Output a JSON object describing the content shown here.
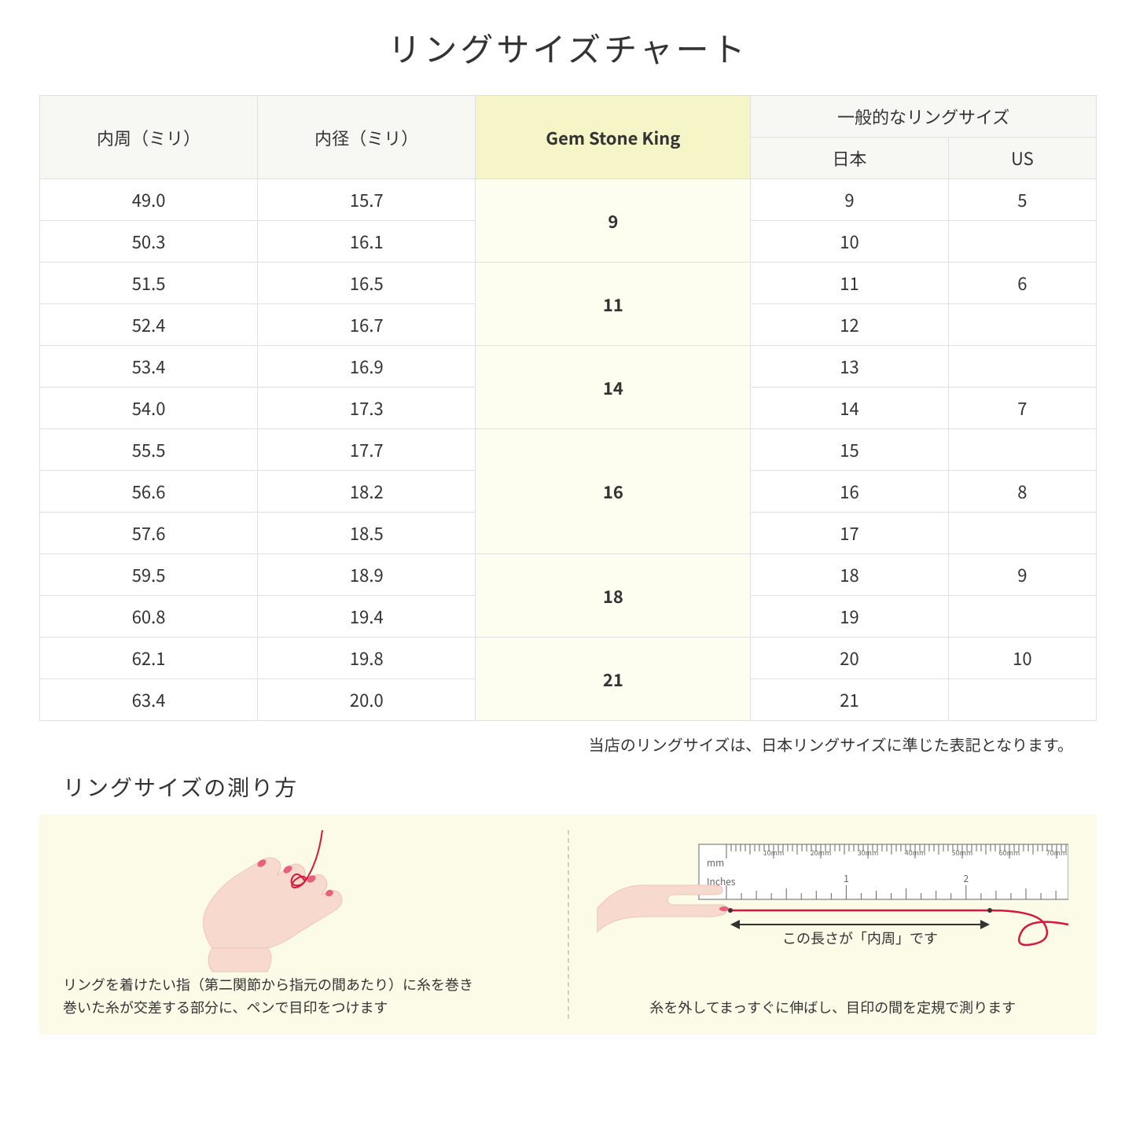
{
  "title": "リングサイズチャート",
  "columns": {
    "c1": "内周（ミリ）",
    "c2": "内径（ミリ）",
    "c3": "Gem Stone King",
    "c4_group": "一般的なリングサイズ",
    "c4a": "日本",
    "c4b": "US"
  },
  "rows": [
    {
      "circ": "49.0",
      "dia": "15.7",
      "gsk": "9",
      "gsk_span": 2,
      "jp": "9",
      "us": "5"
    },
    {
      "circ": "50.3",
      "dia": "16.1",
      "jp": "10",
      "us": ""
    },
    {
      "circ": "51.5",
      "dia": "16.5",
      "gsk": "11",
      "gsk_span": 2,
      "jp": "11",
      "us": "6"
    },
    {
      "circ": "52.4",
      "dia": "16.7",
      "jp": "12",
      "us": ""
    },
    {
      "circ": "53.4",
      "dia": "16.9",
      "gsk": "14",
      "gsk_span": 2,
      "jp": "13",
      "us": ""
    },
    {
      "circ": "54.0",
      "dia": "17.3",
      "jp": "14",
      "us": "7"
    },
    {
      "circ": "55.5",
      "dia": "17.7",
      "gsk": "16",
      "gsk_span": 3,
      "jp": "15",
      "us": ""
    },
    {
      "circ": "56.6",
      "dia": "18.2",
      "jp": "16",
      "us": "8"
    },
    {
      "circ": "57.6",
      "dia": "18.5",
      "jp": "17",
      "us": ""
    },
    {
      "circ": "59.5",
      "dia": "18.9",
      "gsk": "18",
      "gsk_span": 2,
      "jp": "18",
      "us": "9"
    },
    {
      "circ": "60.8",
      "dia": "19.4",
      "jp": "19",
      "us": ""
    },
    {
      "circ": "62.1",
      "dia": "19.8",
      "gsk": "21",
      "gsk_span": 2,
      "jp": "20",
      "us": "10"
    },
    {
      "circ": "63.4",
      "dia": "20.0",
      "jp": "21",
      "us": ""
    }
  ],
  "note": "当店のリングサイズは、日本リングサイズに準じた表記となります。",
  "howto": {
    "title": "リングサイズの測り方",
    "left_line1": "リングを着けたい指（第二関節から指元の間あたり）に糸を巻き",
    "left_line2": "巻いた糸が交差する部分に、ペンで目印をつけます",
    "right_arrow": "この長さが「内周」です",
    "right_caption": "糸を外してまっすぐに伸ばし、目印の間を定規で測ります",
    "ruler": {
      "mm_label": "mm",
      "in_label": "Inches",
      "mm_ticks": [
        "10mm",
        "20mm",
        "30mm",
        "40mm",
        "50mm",
        "60mm",
        "70mm"
      ],
      "in_ticks": [
        "1",
        "2"
      ]
    }
  },
  "colors": {
    "header_bg": "#f7f7f3",
    "gsk_header_bg": "#f5f5c8",
    "gsk_cell_bg": "#fdfdf0",
    "border": "#e0e0e0",
    "panel_bg": "#fbfbe8",
    "thread": "#d8173a",
    "skin": "#f8d9ce",
    "skin_shadow": "#f0c4b3",
    "nail": "#e8607a"
  }
}
